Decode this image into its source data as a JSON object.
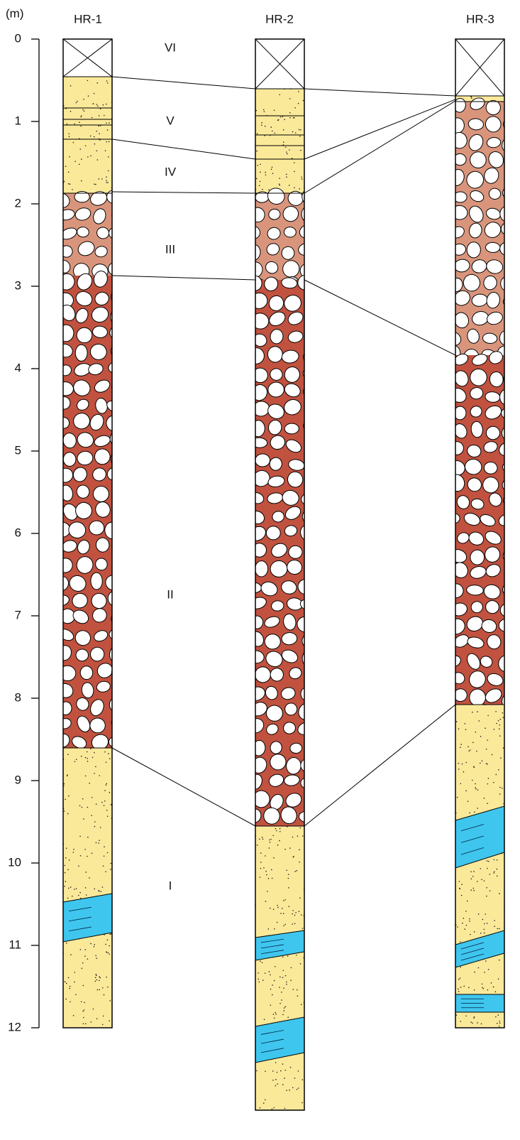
{
  "axis": {
    "unit": "(m)",
    "ticks": [
      0,
      1,
      2,
      3,
      4,
      5,
      6,
      7,
      8,
      9,
      10,
      11,
      12
    ]
  },
  "columns": [
    {
      "label": "HR-1"
    },
    {
      "label": "HR-2"
    },
    {
      "label": "HR-3"
    }
  ],
  "units": [
    {
      "label": "VI"
    },
    {
      "label": "V"
    },
    {
      "label": "IV"
    },
    {
      "label": "III"
    },
    {
      "label": "II"
    },
    {
      "label": "I"
    }
  ]
}
